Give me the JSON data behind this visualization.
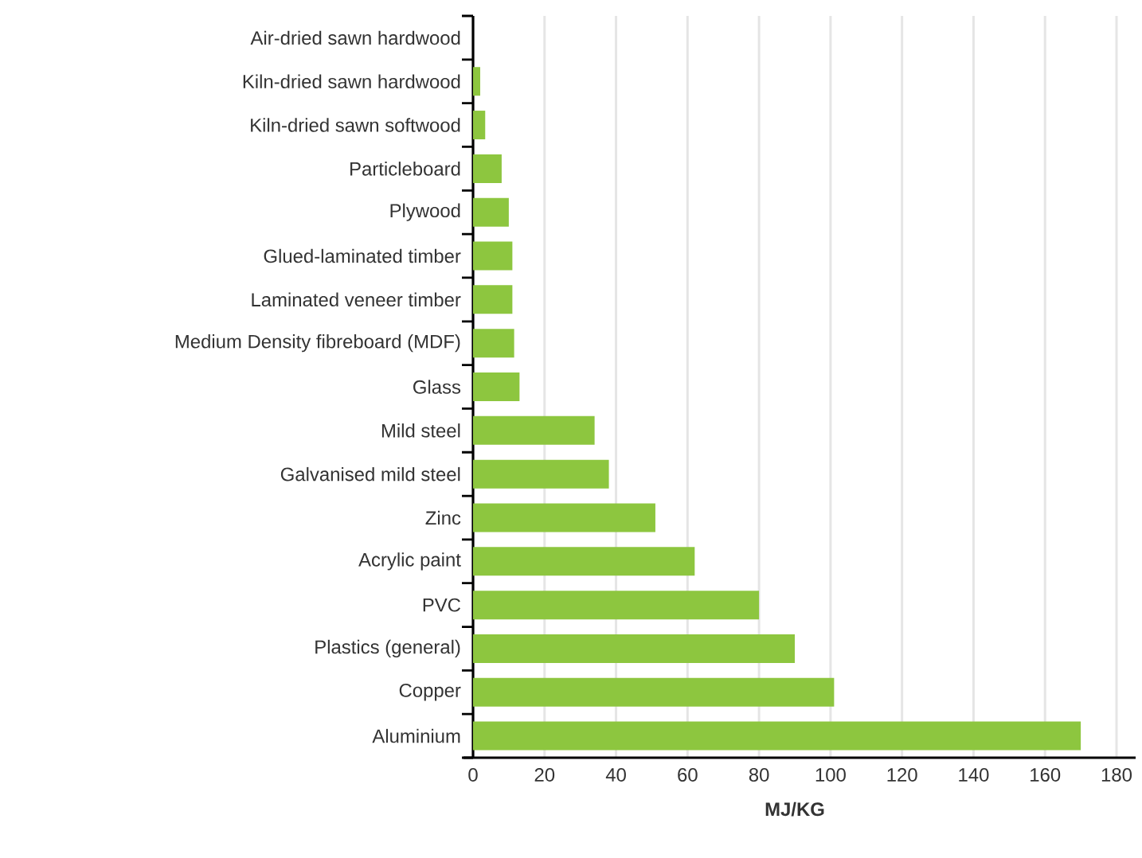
{
  "chart_data": {
    "type": "bar",
    "orientation": "horizontal",
    "xlabel": "**MJ/KG**",
    "categories": [
      "Air-dried sawn hardwood",
      "Kiln-dried sawn hardwood",
      "Kiln-dried sawn softwood",
      "Particleboard",
      "Plywood",
      "Glued-laminated timber",
      "Laminated veneer timber",
      "Medium Density fibreboard (MDF)",
      "Glass",
      "Mild steel",
      "Galvanised mild steel",
      "Zinc",
      "Acrylic paint",
      "PVC",
      "Plastics (general)",
      "Copper",
      "Aluminium"
    ],
    "values": [
      null,
      2,
      3.4,
      8,
      10,
      11,
      11,
      11.5,
      13,
      34,
      38,
      51,
      62,
      80,
      90,
      101,
      170
    ],
    "color": "#8dc63f",
    "xlim": [
      0,
      180
    ],
    "xticks": [
      0,
      20,
      40,
      60,
      80,
      100,
      120,
      140,
      160,
      180
    ],
    "grid": "x"
  }
}
